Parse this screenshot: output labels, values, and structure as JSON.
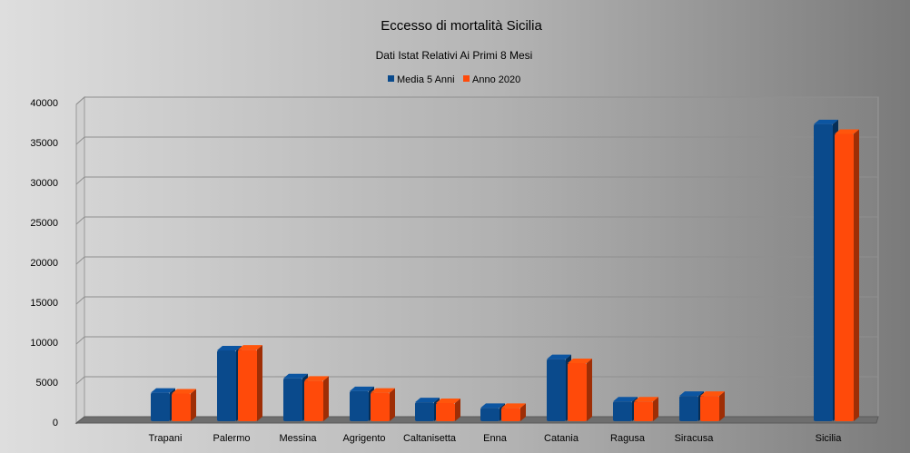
{
  "chart_data": {
    "type": "bar",
    "title": "Eccesso di mortalità Sicilia",
    "subtitle": "Dati Istat Relativi Ai Primi 8 Mesi",
    "xlabel": "",
    "ylabel": "",
    "categories": [
      "Trapani",
      "Palermo",
      "Messina",
      "Agrigento",
      "Caltanisetta",
      "Enna",
      "Catania",
      "Ragusa",
      "Siracusa",
      "",
      "Sicilia"
    ],
    "series": [
      {
        "name": "Media 5 Anni",
        "color": "#0a4a8c",
        "values": [
          3000,
          8300,
          4800,
          3200,
          1800,
          1100,
          7200,
          1900,
          2600,
          null,
          36600
        ]
      },
      {
        "name": "Anno 2020",
        "color": "#ff4a0a",
        "values": [
          2900,
          8400,
          4500,
          3000,
          1700,
          1100,
          6700,
          1900,
          2600,
          null,
          35400
        ]
      }
    ],
    "ylim": [
      0,
      40000
    ],
    "yticks": [
      0,
      5000,
      10000,
      15000,
      20000,
      25000,
      30000,
      35000,
      40000
    ],
    "grid": true,
    "legend": "top-center"
  }
}
